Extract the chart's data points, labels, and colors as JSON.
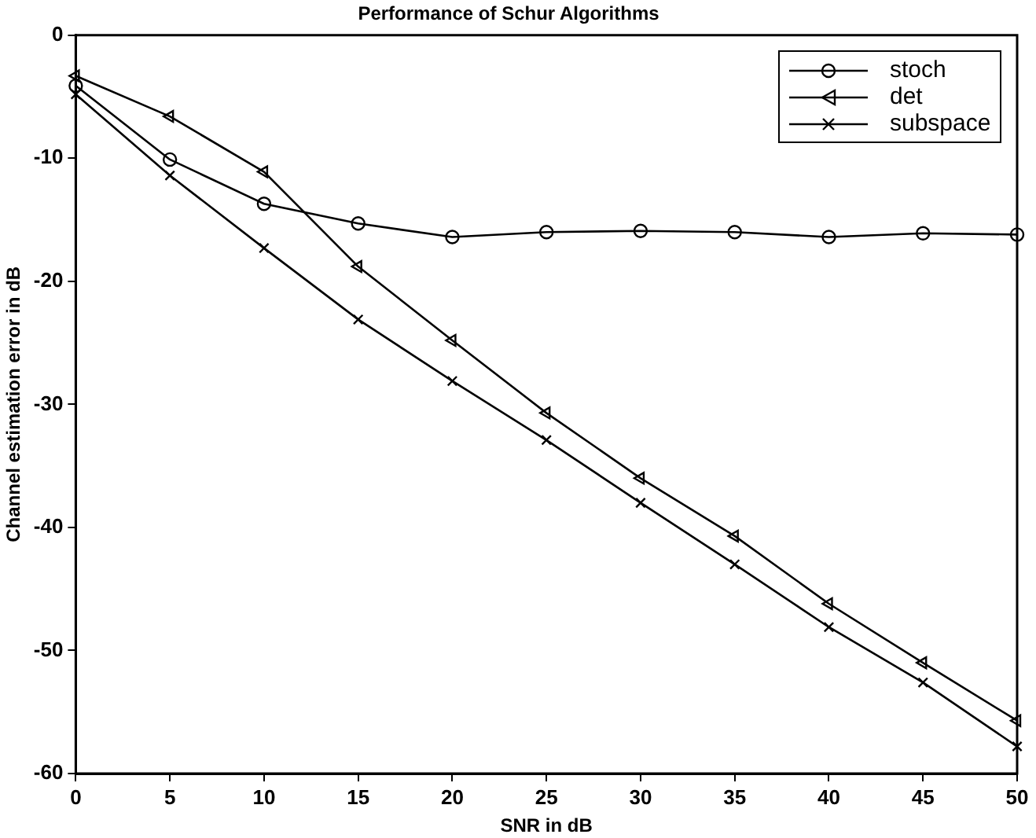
{
  "chart_data": {
    "type": "line",
    "title": "Performance of Schur Algorithms",
    "xlabel": "SNR in dB",
    "ylabel": "Channel estimation error in dB",
    "x": [
      0,
      5,
      10,
      15,
      20,
      25,
      30,
      35,
      40,
      45,
      50
    ],
    "xlim": [
      0,
      50
    ],
    "xticks": [
      0,
      5,
      10,
      15,
      20,
      25,
      30,
      35,
      40,
      45,
      50
    ],
    "ylim": [
      -60,
      0
    ],
    "yticks": [
      -60,
      -50,
      -40,
      -30,
      -20,
      -10,
      0
    ],
    "grid": false,
    "legend": "top right",
    "series": [
      {
        "name": "stoch",
        "color": "#000000",
        "marker": "circle",
        "values": [
          -4.1,
          -10.1,
          -13.7,
          -15.3,
          -16.4,
          -16.0,
          -15.9,
          -16.0,
          -16.4,
          -16.1,
          -16.2
        ]
      },
      {
        "name": "det",
        "color": "#000000",
        "marker": "triangle",
        "values": [
          -3.3,
          -6.6,
          -11.1,
          -18.8,
          -24.8,
          -30.7,
          -36.0,
          -40.7,
          -46.2,
          -51.0,
          -55.7
        ]
      },
      {
        "name": "subspace",
        "color": "#000000",
        "marker": "cross",
        "values": [
          -4.8,
          -11.4,
          -17.3,
          -23.1,
          -28.1,
          -32.9,
          -38.0,
          -43.0,
          -48.1,
          -52.6,
          -57.8
        ]
      }
    ]
  }
}
